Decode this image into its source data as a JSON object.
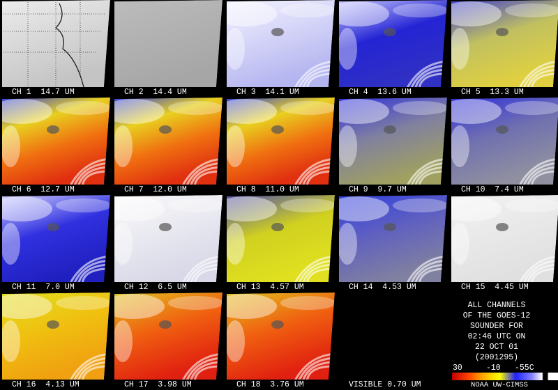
{
  "panels": [
    {
      "label": "CH 1  14.7 UM"
    },
    {
      "label": "CH 2  14.4 UM"
    },
    {
      "label": "CH 3  14.1 UM"
    },
    {
      "label": "CH 4  13.6 UM"
    },
    {
      "label": "CH 5  13.3 UM"
    },
    {
      "label": "CH 6  12.7 UM"
    },
    {
      "label": "CH 7  12.0 UM"
    },
    {
      "label": "CH 8  11.0 UM"
    },
    {
      "label": "CH 9  9.7 UM"
    },
    {
      "label": "CH 10  7.4 UM"
    },
    {
      "label": "CH 11  7.0 UM"
    },
    {
      "label": "CH 12  6.5 UM"
    },
    {
      "label": "CH 13  4.57 UM"
    },
    {
      "label": "CH 14  4.53 UM"
    },
    {
      "label": "CH 15  4.45 UM"
    },
    {
      "label": "CH 16  4.13 UM"
    },
    {
      "label": "CH 17  3.98 UM"
    },
    {
      "label": "CH 18  3.76 UM"
    },
    {
      "label": "VISIBLE 0.70 UM"
    }
  ],
  "info": {
    "lines": [
      "ALL CHANNELS",
      "OF THE GOES-12",
      "SOUNDER FOR",
      "02:46 UTC ON",
      "22 OCT 01",
      "(2001295)"
    ],
    "colorbar_labels": [
      "30",
      "-10",
      "-55C"
    ],
    "credit": "NOAA UW-CIMSS"
  }
}
